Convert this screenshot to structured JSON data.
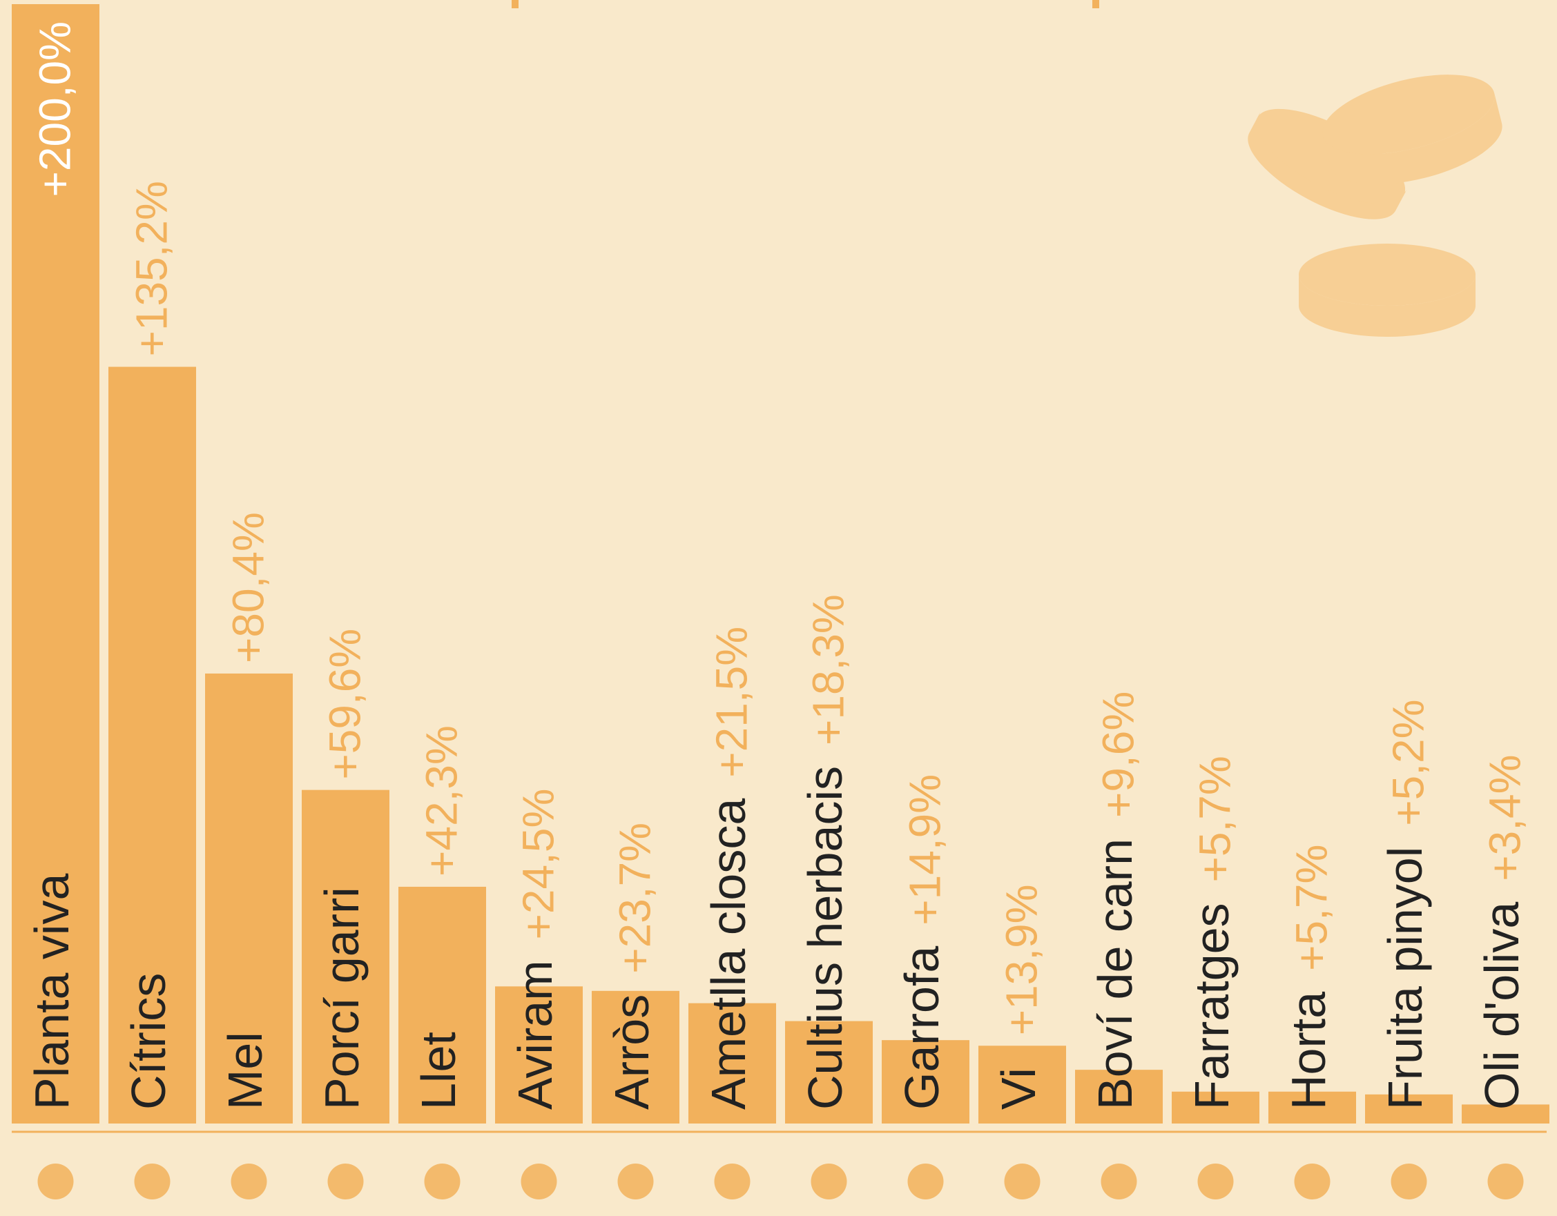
{
  "chart_data": {
    "type": "bar",
    "categories": [
      "Planta viva",
      "Cítrics",
      "Mel",
      "Porcí garri",
      "Llet",
      "Aviram",
      "Arròs",
      "Ametlla closca",
      "Cultius herbacis",
      "Garrofa",
      "Vi",
      "Boví de carn",
      "Farratges",
      "Horta",
      "Fruita pinyol",
      "Oli d'oliva"
    ],
    "values": [
      200.0,
      135.2,
      80.4,
      59.6,
      42.3,
      24.5,
      23.7,
      21.5,
      18.3,
      14.9,
      13.9,
      9.6,
      5.7,
      5.7,
      5.2,
      3.4
    ],
    "value_labels": [
      "+200,0%",
      "+135,2%",
      "+80,4%",
      "+59,6%",
      "+42,3%",
      "+24,5%",
      "+23,7%",
      "+21,5%",
      "+18,3%",
      "+14,9%",
      "+13,9%",
      "+9,6%",
      "+5,7%",
      "+5,7%",
      "+5,2%",
      "+3,4%"
    ],
    "color": "#f2b15c",
    "ylim": [
      0,
      200
    ]
  }
}
